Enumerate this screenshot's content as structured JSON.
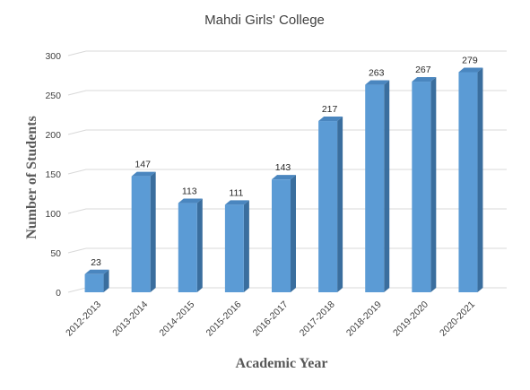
{
  "chart_data": {
    "type": "bar",
    "title": "Mahdi Girls' College",
    "xlabel": "Academic Year",
    "ylabel": "Number of Students",
    "categories": [
      "2012-2013",
      "2013-2014",
      "2014-2015",
      "2015-2016",
      "2016-2017",
      "2017-2018",
      "2018-2019",
      "2019-2020",
      "2020-2021"
    ],
    "values": [
      23,
      147,
      113,
      111,
      143,
      217,
      263,
      267,
      279
    ],
    "ylim": [
      0,
      300
    ],
    "yticks": [
      0,
      50,
      100,
      150,
      200,
      250,
      300
    ],
    "grid": true,
    "three_d": true,
    "data_labels": true,
    "colors": {
      "bar_front": "#5B9BD5",
      "bar_side": "#3A6E9E",
      "bar_top": "#4A86BF",
      "grid": "#D9D9D9"
    }
  }
}
